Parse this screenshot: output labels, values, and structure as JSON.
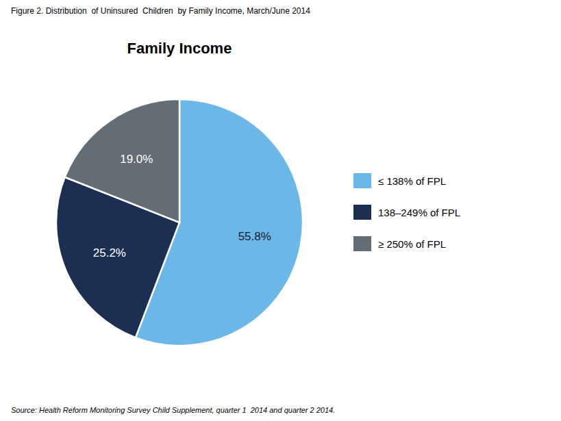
{
  "chart_data": {
    "type": "pie",
    "title": "Family Income",
    "categories": [
      "≤ 138% of FPL",
      "138–249% of FPL",
      "≥ 250% of FPL"
    ],
    "values": [
      55.8,
      25.2,
      19.0
    ],
    "value_labels": [
      "55.8%",
      "25.2%",
      "19.0%"
    ],
    "colors": [
      "#6BB8E8",
      "#1C2F52",
      "#636D75"
    ],
    "data_labels": true,
    "legend": "right",
    "annotations": [
      "Figure 2. Distribution  of Uninsured  Children  by Family Income, March/June 2014",
      "Source: Health Reform Monitoring Survey Child Supplement, quarter 1  2014 and quarter 2 2014."
    ]
  }
}
